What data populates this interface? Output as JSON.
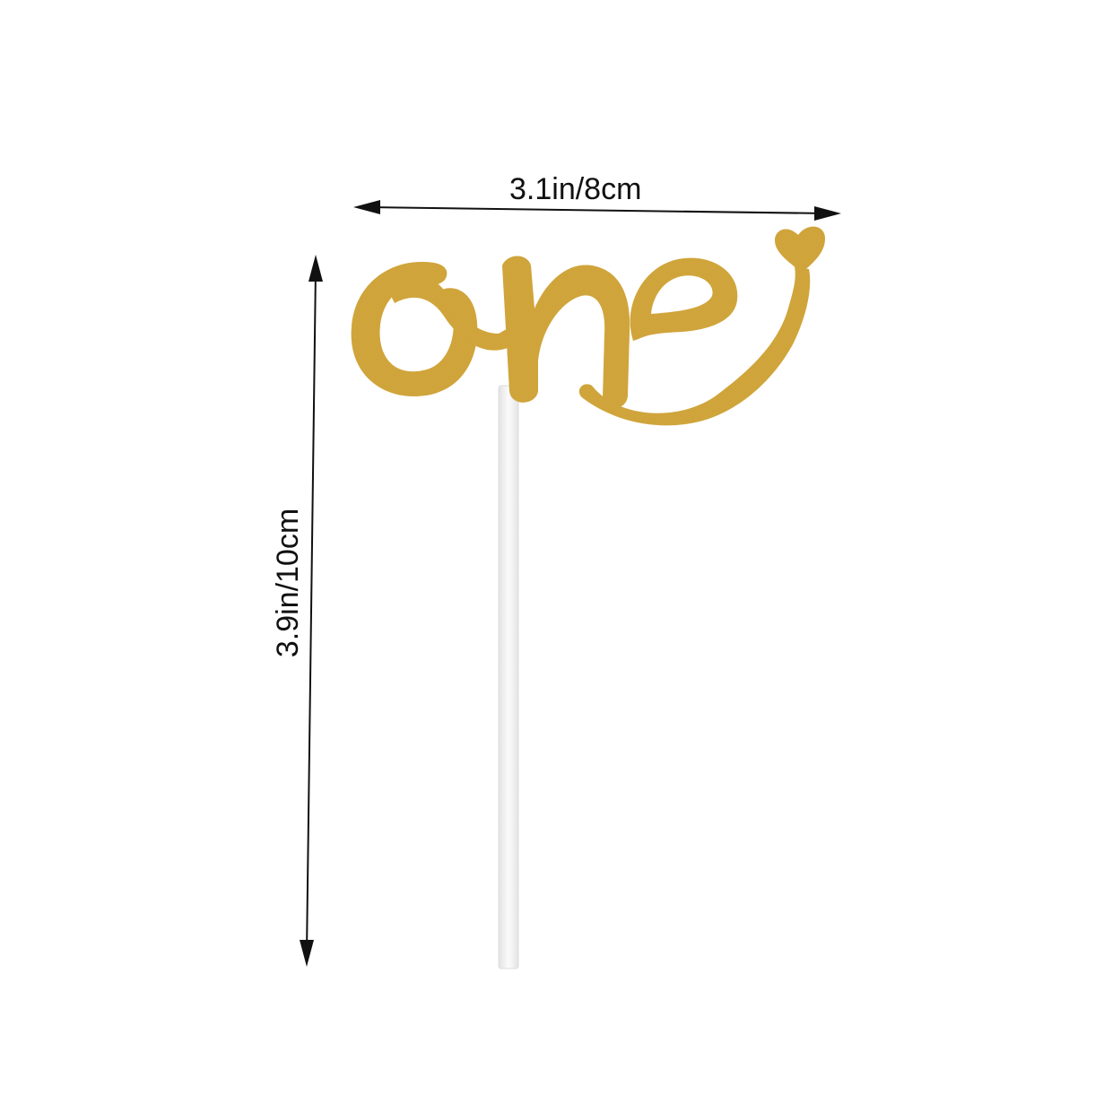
{
  "dimensions": {
    "width_label": "3.1in/8cm",
    "height_label": "3.9in/10cm"
  },
  "product": {
    "topper_word": "one",
    "topper_color": "#d9a93a",
    "topper_shade": "#b98a22",
    "stick_color": "#f4f4f4"
  },
  "arrows": {
    "color": "#111111"
  }
}
